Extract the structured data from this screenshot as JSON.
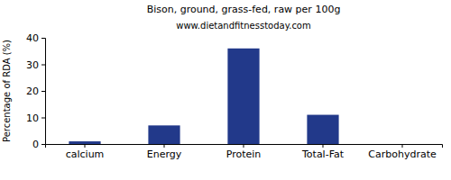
{
  "chart_data": {
    "type": "bar",
    "title": "Bison, ground, grass-fed, raw per 100g",
    "subtitle": "www.dietandfitnesstoday.com",
    "y_label": "Percentage of RDA (%)",
    "categories": [
      "calcium",
      "Energy",
      "Protein",
      "Total-Fat",
      "Carbohydrate"
    ],
    "values": [
      1,
      7,
      36,
      11,
      0
    ],
    "color": "#22398a",
    "ylim": [
      0,
      40
    ],
    "yticks": [
      0,
      10,
      20,
      30,
      40
    ],
    "grid": false
  }
}
